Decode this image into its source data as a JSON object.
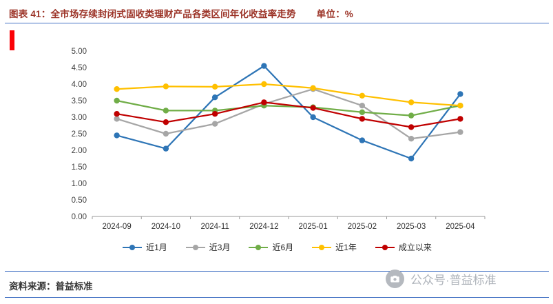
{
  "header": {
    "title": "图表 41：全市场存续封闭式固收类理财产品各类区间年化收益率走势",
    "unit": "单位：%"
  },
  "chart_data": {
    "type": "line",
    "title": "全市场存续封闭式固收类理财产品各类区间年化收益率走势",
    "xlabel": "",
    "ylabel": "",
    "unit": "%",
    "categories": [
      "2024-09",
      "2024-10",
      "2024-11",
      "2024-12",
      "2025-01",
      "2025-02",
      "2025-03",
      "2025-04"
    ],
    "series": [
      {
        "name": "近1月",
        "color": "#2E75B6",
        "values": [
          2.45,
          2.05,
          3.6,
          4.55,
          3.0,
          2.3,
          1.75,
          3.7
        ]
      },
      {
        "name": "近3月",
        "color": "#A6A6A6",
        "values": [
          2.95,
          2.5,
          2.8,
          3.4,
          3.85,
          3.35,
          2.35,
          2.55
        ]
      },
      {
        "name": "近6月",
        "color": "#70AD47",
        "values": [
          3.5,
          3.2,
          3.2,
          3.35,
          3.3,
          3.15,
          3.05,
          3.35
        ]
      },
      {
        "name": "近1年",
        "color": "#FFC000",
        "values": [
          3.85,
          3.93,
          3.92,
          4.0,
          3.88,
          3.65,
          3.45,
          3.35
        ]
      },
      {
        "name": "成立以来",
        "color": "#C00000",
        "values": [
          3.1,
          2.85,
          3.1,
          3.45,
          3.28,
          2.95,
          2.7,
          2.95
        ]
      }
    ],
    "ylim": [
      0,
      5
    ],
    "ytick_step": 0.5,
    "ytick_labels": [
      "0.00",
      "0.50",
      "1.00",
      "1.50",
      "2.00",
      "2.50",
      "3.00",
      "3.50",
      "4.00",
      "4.50",
      "5.00"
    ],
    "grid": false,
    "legend_position": "bottom",
    "marker": "circle"
  },
  "footer": {
    "source": "资料来源：普益标准"
  },
  "watermark": {
    "text": "公众号·普益标准"
  }
}
